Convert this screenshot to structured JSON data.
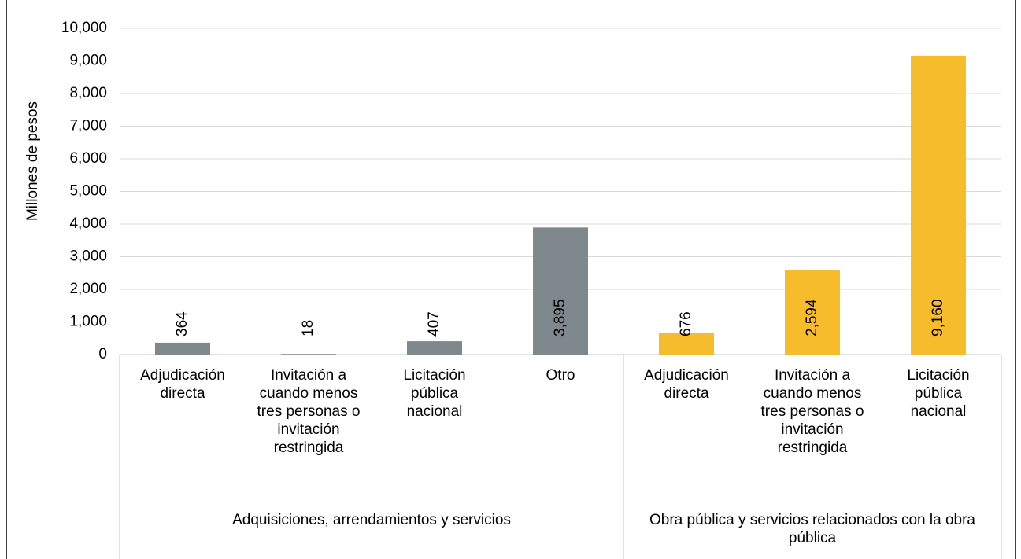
{
  "chart_data": {
    "type": "bar",
    "y_label": "Millones de pesos",
    "ylim": [
      0,
      10000
    ],
    "yticks": [
      0,
      {
        "value": 1000,
        "label": "1,000"
      },
      {
        "value": 2000,
        "label": "2,000"
      },
      {
        "value": 3000,
        "label": "3,000"
      },
      {
        "value": 4000,
        "label": "4,000"
      },
      {
        "value": 5000,
        "label": "5,000"
      },
      {
        "value": 6000,
        "label": "6,000"
      },
      {
        "value": 7000,
        "label": "7,000"
      },
      {
        "value": 8000,
        "label": "8,000"
      },
      {
        "value": 9000,
        "label": "9,000"
      },
      {
        "value": 10000,
        "label": "10,000"
      }
    ],
    "grid": true,
    "groups": [
      {
        "name": "Adquisiciones, arrendamientos y servicios",
        "color": "#7f888c",
        "categories": [
          "Adjudicación directa",
          "Invitación a cuando menos tres personas o invitación restringida",
          "Licitación pública nacional",
          "Otro"
        ],
        "values": [
          364,
          18,
          407,
          3895
        ],
        "value_labels": [
          "364",
          "18",
          "407",
          "3,895"
        ]
      },
      {
        "name": "Obra pública y servicios relacionados con la obra pública",
        "color": "#f7bc2b",
        "categories": [
          "Adjudicación directa",
          "Invitación a cuando menos tres personas o invitación restringida",
          "Licitación pública nacional"
        ],
        "values": [
          676,
          2594,
          9160
        ],
        "value_labels": [
          "676",
          "2,594",
          "9,160"
        ]
      }
    ]
  }
}
